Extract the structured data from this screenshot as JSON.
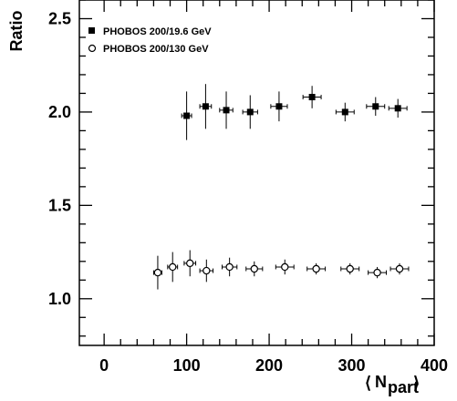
{
  "chart_data": {
    "type": "scatter",
    "ylabel": "Ratio",
    "xlabel_main": "N",
    "xlabel_sub": "part",
    "xlim": [
      -30,
      400
    ],
    "ylim": [
      0.75,
      2.6
    ],
    "xticks": [
      0,
      100,
      200,
      300,
      400
    ],
    "yticks": [
      1.0,
      1.5,
      2.0,
      2.5
    ],
    "xtick_labels": [
      "0",
      "100",
      "200",
      "300",
      "400"
    ],
    "ytick_labels": [
      "1.0",
      "1.5",
      "2.0",
      "2.5"
    ],
    "legend_position": "top-left",
    "series": [
      {
        "name": "PHOBOS 200/19.6 GeV",
        "marker": "filled-square",
        "points": [
          {
            "x": 100,
            "y": 1.98,
            "xerr": 6,
            "yerr": 0.13
          },
          {
            "x": 123,
            "y": 2.03,
            "xerr": 7,
            "yerr": 0.12
          },
          {
            "x": 148,
            "y": 2.01,
            "xerr": 8,
            "yerr": 0.1
          },
          {
            "x": 177,
            "y": 2.0,
            "xerr": 9,
            "yerr": 0.09
          },
          {
            "x": 212,
            "y": 2.03,
            "xerr": 10,
            "yerr": 0.08
          },
          {
            "x": 252,
            "y": 2.08,
            "xerr": 11,
            "yerr": 0.06
          },
          {
            "x": 292,
            "y": 2.0,
            "xerr": 11,
            "yerr": 0.05
          },
          {
            "x": 329,
            "y": 2.03,
            "xerr": 11,
            "yerr": 0.05
          },
          {
            "x": 356,
            "y": 2.02,
            "xerr": 11,
            "yerr": 0.05
          }
        ]
      },
      {
        "name": "PHOBOS 200/130 GeV",
        "marker": "open-circle",
        "points": [
          {
            "x": 65,
            "y": 1.14,
            "xerr": 5,
            "yerr": 0.09
          },
          {
            "x": 83,
            "y": 1.17,
            "xerr": 6,
            "yerr": 0.08
          },
          {
            "x": 104,
            "y": 1.19,
            "xerr": 7,
            "yerr": 0.07
          },
          {
            "x": 124,
            "y": 1.15,
            "xerr": 8,
            "yerr": 0.06
          },
          {
            "x": 152,
            "y": 1.17,
            "xerr": 9,
            "yerr": 0.05
          },
          {
            "x": 182,
            "y": 1.16,
            "xerr": 10,
            "yerr": 0.04
          },
          {
            "x": 219,
            "y": 1.17,
            "xerr": 11,
            "yerr": 0.04
          },
          {
            "x": 257,
            "y": 1.16,
            "xerr": 11,
            "yerr": 0.03
          },
          {
            "x": 298,
            "y": 1.16,
            "xerr": 11,
            "yerr": 0.03
          },
          {
            "x": 331,
            "y": 1.14,
            "xerr": 11,
            "yerr": 0.03
          },
          {
            "x": 358,
            "y": 1.16,
            "xerr": 11,
            "yerr": 0.03
          }
        ]
      }
    ]
  }
}
